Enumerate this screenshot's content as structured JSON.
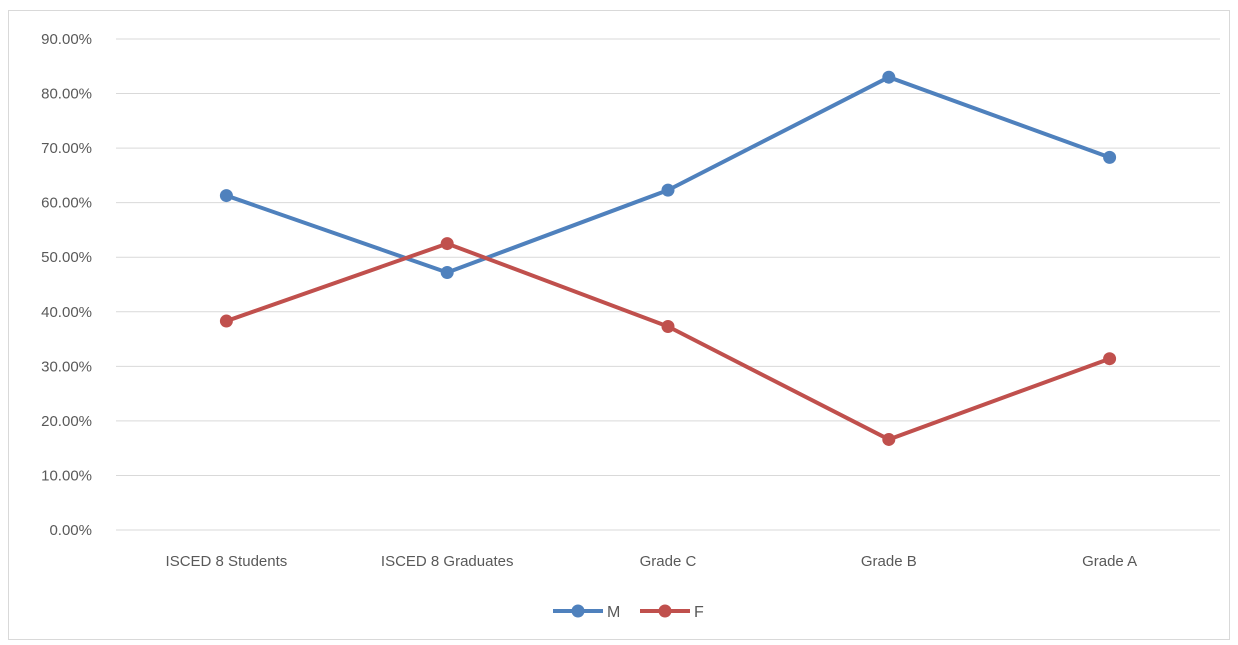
{
  "chart_data": {
    "type": "line",
    "title": "",
    "xlabel": "",
    "ylabel": "",
    "categories": [
      "ISCED 8 Students",
      "ISCED 8 Graduates",
      "Grade C",
      "Grade B",
      "Grade A"
    ],
    "y_ticks": [
      "0.00%",
      "10.00%",
      "20.00%",
      "30.00%",
      "40.00%",
      "50.00%",
      "60.00%",
      "70.00%",
      "80.00%",
      "90.00%"
    ],
    "ylim": [
      0,
      90
    ],
    "grid": true,
    "legend_position": "bottom",
    "series": [
      {
        "name": "M",
        "color": "#4F81BD",
        "values": [
          61.3,
          47.2,
          62.3,
          83.0,
          68.3
        ]
      },
      {
        "name": "F",
        "color": "#C0504D",
        "values": [
          38.3,
          52.5,
          37.3,
          16.6,
          31.4
        ]
      }
    ]
  }
}
